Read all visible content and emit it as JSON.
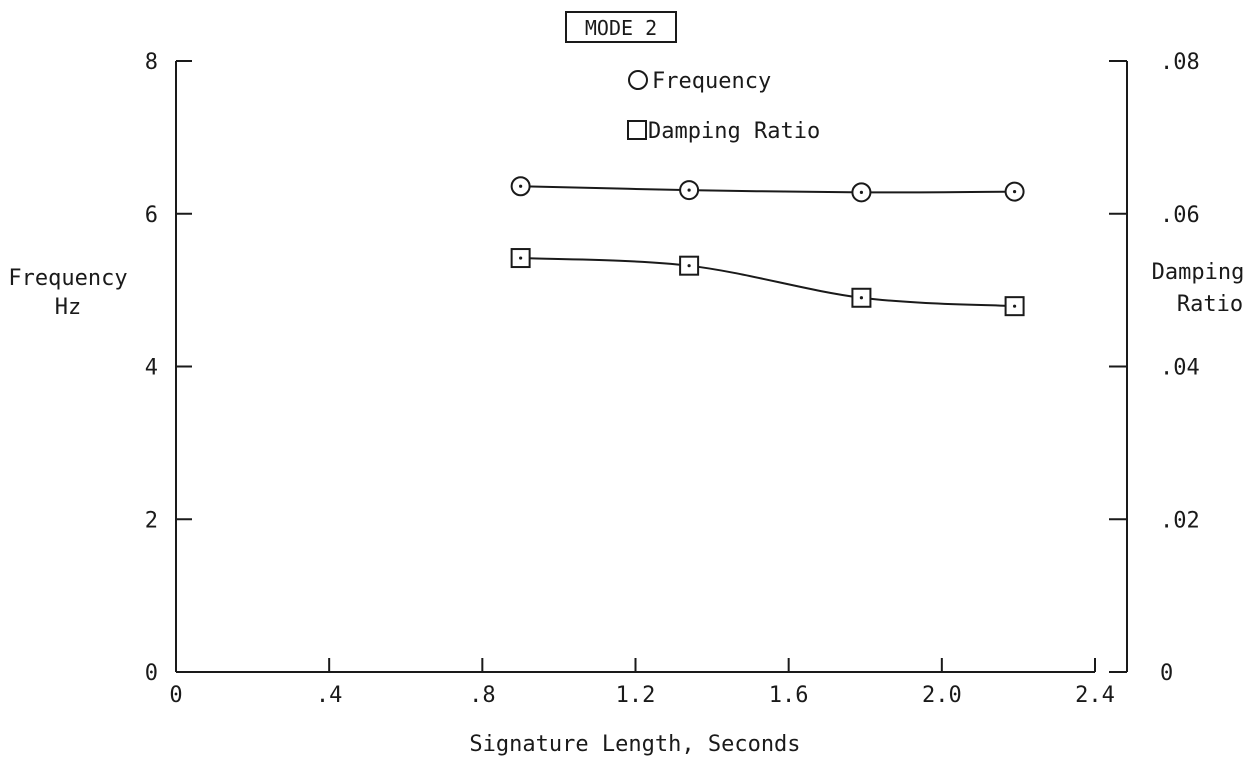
{
  "chart_data": {
    "type": "line",
    "title": "",
    "annotation": "MODE 2",
    "xlabel": "Signature Length, Seconds",
    "ylabel": [
      "Frequency",
      "Hz"
    ],
    "y2label": [
      "Damping",
      "Ratio"
    ],
    "xlim": [
      0,
      2.4
    ],
    "ylim": [
      0,
      8
    ],
    "y2lim": [
      0,
      0.08
    ],
    "x_ticks": [
      0,
      0.4,
      0.8,
      1.2,
      1.6,
      2.0,
      2.4
    ],
    "x_tick_labels": [
      "0",
      ".4",
      ".8",
      "1.2",
      "1.6",
      "2.0",
      "2.4"
    ],
    "y_ticks": [
      0,
      2,
      4,
      6,
      8
    ],
    "y_tick_labels": [
      "0",
      "2",
      "4",
      "6",
      "8"
    ],
    "y2_ticks": [
      0,
      0.02,
      0.04,
      0.06,
      0.08
    ],
    "y2_tick_labels": [
      "0",
      ".02",
      ".04",
      ".06",
      ".08"
    ],
    "grid": false,
    "legend_position": "top-center",
    "series": [
      {
        "name": "Frequency",
        "axis": "left",
        "marker": "circle",
        "x": [
          0.9,
          1.34,
          1.79,
          2.19
        ],
        "y": [
          6.36,
          6.31,
          6.28,
          6.29
        ]
      },
      {
        "name": "Damping Ratio",
        "axis": "right",
        "marker": "square",
        "x": [
          0.9,
          1.34,
          1.79,
          2.19
        ],
        "y": [
          0.0542,
          0.0532,
          0.049,
          0.0479
        ]
      }
    ]
  }
}
